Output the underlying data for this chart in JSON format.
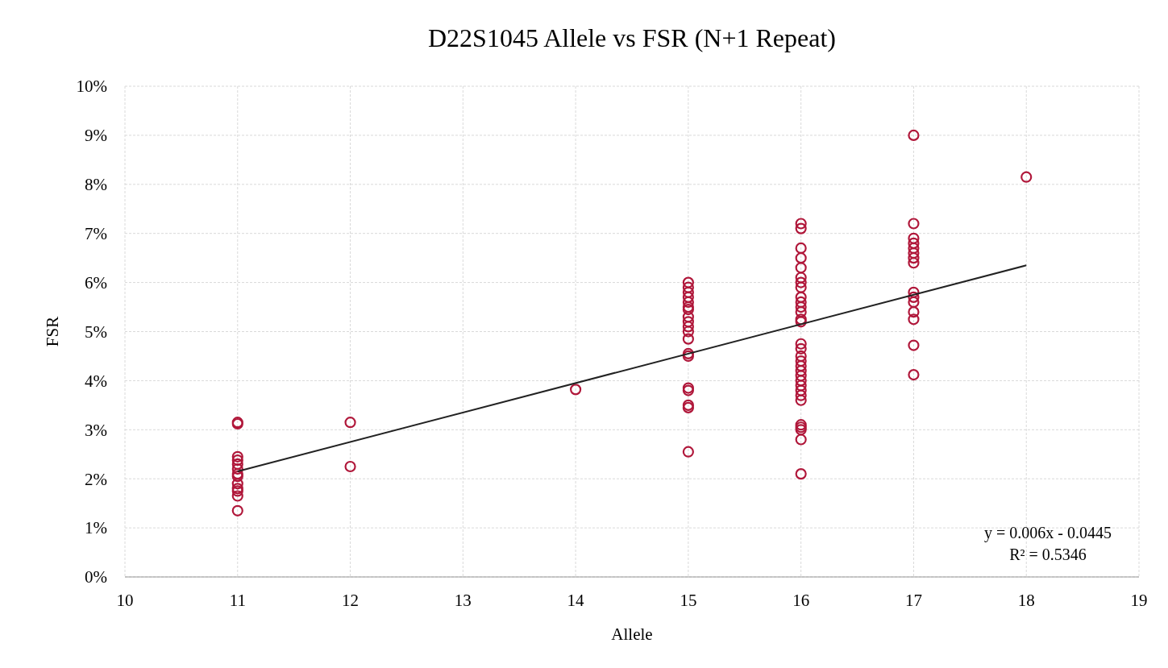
{
  "chart_data": {
    "type": "scatter",
    "title": "D22S1045 Allele vs FSR (N+1 Repeat)",
    "xlabel": "Allele",
    "ylabel": "FSR",
    "xlim": [
      10,
      19
    ],
    "xticks": [
      10,
      11,
      12,
      13,
      14,
      15,
      16,
      17,
      18,
      19
    ],
    "ylim": [
      0,
      0.1
    ],
    "yticks": [
      {
        "value": 0,
        "label": "0%"
      },
      {
        "value": 0.01,
        "label": "1%"
      },
      {
        "value": 0.02,
        "label": "2%"
      },
      {
        "value": 0.03,
        "label": "3%"
      },
      {
        "value": 0.04,
        "label": "4%"
      },
      {
        "value": 0.05,
        "label": "5%"
      },
      {
        "value": 0.06,
        "label": "6%"
      },
      {
        "value": 0.07,
        "label": "7%"
      },
      {
        "value": 0.08,
        "label": "8%"
      },
      {
        "value": 0.09,
        "label": "9%"
      },
      {
        "value": 0.1,
        "label": "10%"
      }
    ],
    "grid": true,
    "series": [
      {
        "marker": "circle",
        "color": "#b0173a",
        "x": [
          11,
          11,
          11,
          11,
          11,
          11,
          11,
          11,
          11,
          11,
          11,
          11,
          11,
          12,
          12,
          14,
          15,
          15,
          15,
          15,
          15,
          15,
          15,
          15,
          15,
          15,
          15,
          15,
          15,
          15,
          15,
          15,
          15,
          15,
          15,
          16,
          16,
          16,
          16,
          16,
          16,
          16,
          16,
          16,
          16,
          16,
          16,
          16,
          16,
          16,
          16,
          16,
          16,
          16,
          16,
          16,
          16,
          16,
          16,
          16,
          16,
          16,
          16,
          16,
          16,
          16,
          17,
          17,
          17,
          17,
          17,
          17,
          17,
          17,
          17,
          17,
          17,
          17,
          17,
          17,
          17,
          18
        ],
        "values": [
          0.0315,
          0.0312,
          0.0245,
          0.0238,
          0.023,
          0.022,
          0.021,
          0.0205,
          0.019,
          0.018,
          0.0175,
          0.0165,
          0.0135,
          0.0315,
          0.0225,
          0.0382,
          0.06,
          0.059,
          0.058,
          0.057,
          0.056,
          0.055,
          0.0545,
          0.053,
          0.052,
          0.051,
          0.05,
          0.0485,
          0.0455,
          0.045,
          0.0385,
          0.038,
          0.035,
          0.0345,
          0.0255,
          0.072,
          0.071,
          0.067,
          0.065,
          0.063,
          0.061,
          0.06,
          0.059,
          0.057,
          0.056,
          0.055,
          0.054,
          0.0525,
          0.052,
          0.0475,
          0.0465,
          0.045,
          0.044,
          0.043,
          0.042,
          0.041,
          0.04,
          0.039,
          0.038,
          0.037,
          0.036,
          0.031,
          0.0305,
          0.03,
          0.028,
          0.021,
          0.09,
          0.072,
          0.069,
          0.068,
          0.067,
          0.066,
          0.065,
          0.064,
          0.058,
          0.057,
          0.056,
          0.054,
          0.0525,
          0.0472,
          0.0412,
          0.0815
        ]
      },
      {
        "type": "line",
        "color": "#222222",
        "x": [
          11,
          18
        ],
        "values": [
          0.0215,
          0.0635
        ]
      }
    ],
    "annotations": [
      "y = 0.006x - 0.0445",
      "R² = 0.5346"
    ]
  }
}
